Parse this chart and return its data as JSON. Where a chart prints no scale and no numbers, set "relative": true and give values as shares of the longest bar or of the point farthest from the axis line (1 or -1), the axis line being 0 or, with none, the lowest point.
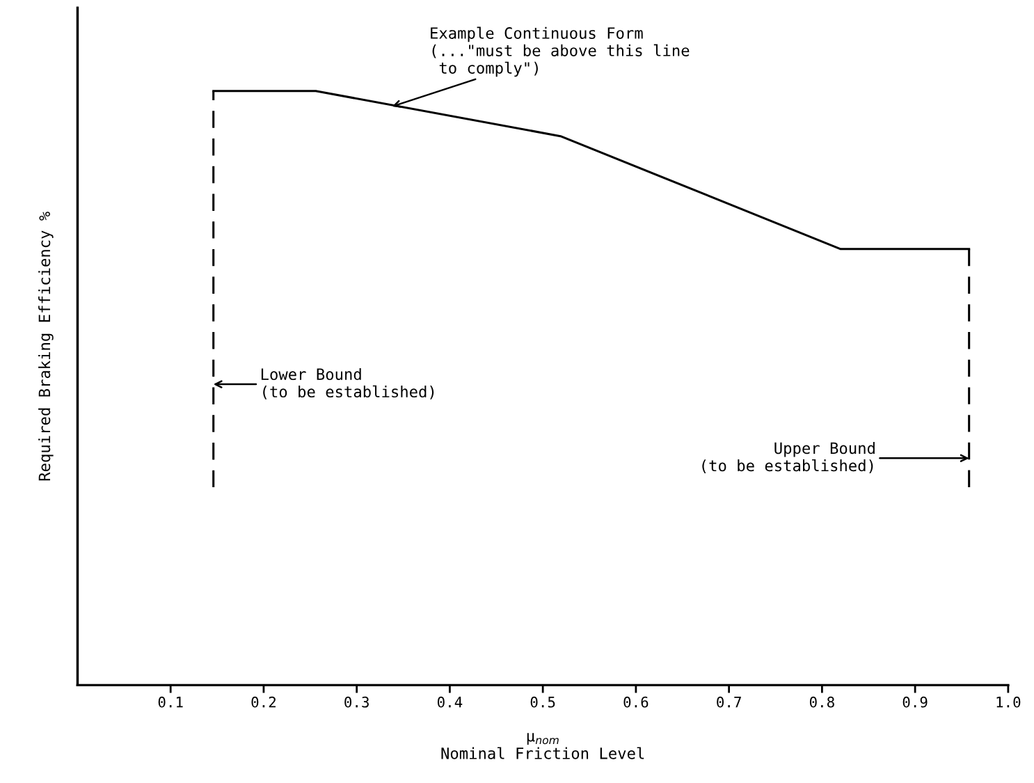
{
  "chart_data": {
    "type": "line",
    "relative": true,
    "xlabel": "μ$_{nom}$\nNominal Friction Level",
    "ylabel": "Required Braking Efficiency %",
    "xlim": [
      0,
      1.0
    ],
    "xticks": [
      0.1,
      0.2,
      0.3,
      0.4,
      0.5,
      0.6,
      0.7,
      0.8,
      0.9,
      {
        "value": 1.0,
        "label": "1.0"
      }
    ],
    "series": [
      {
        "color": "#000000",
        "line_style": "dashed",
        "x": [
          0.146,
          0.146
        ],
        "values": [
          0.333,
          1
        ]
      },
      {
        "color": "#000000",
        "line_style": "solid",
        "x": [
          0.146,
          0.256,
          0.519,
          0.82,
          0.958
        ],
        "values": [
          1,
          1,
          0.924,
          0.734,
          0.734
        ]
      },
      {
        "color": "#000000",
        "line_style": "dashed",
        "x": [
          0.958,
          0.958
        ],
        "values": [
          0.734,
          0.333
        ]
      }
    ],
    "annotations": [
      {
        "text": "Example Continuous Form\n(...\"must be above this line\n to comply\")",
        "x": 0.338,
        "y": 0.974
      },
      "Lower Bound\n(to be established)",
      {
        "text": "Upper Bound\n(to be established)",
        "x": 0.958,
        "y": 0.382
      }
    ],
    "grid": false,
    "legend": false,
    "marker": "none"
  }
}
